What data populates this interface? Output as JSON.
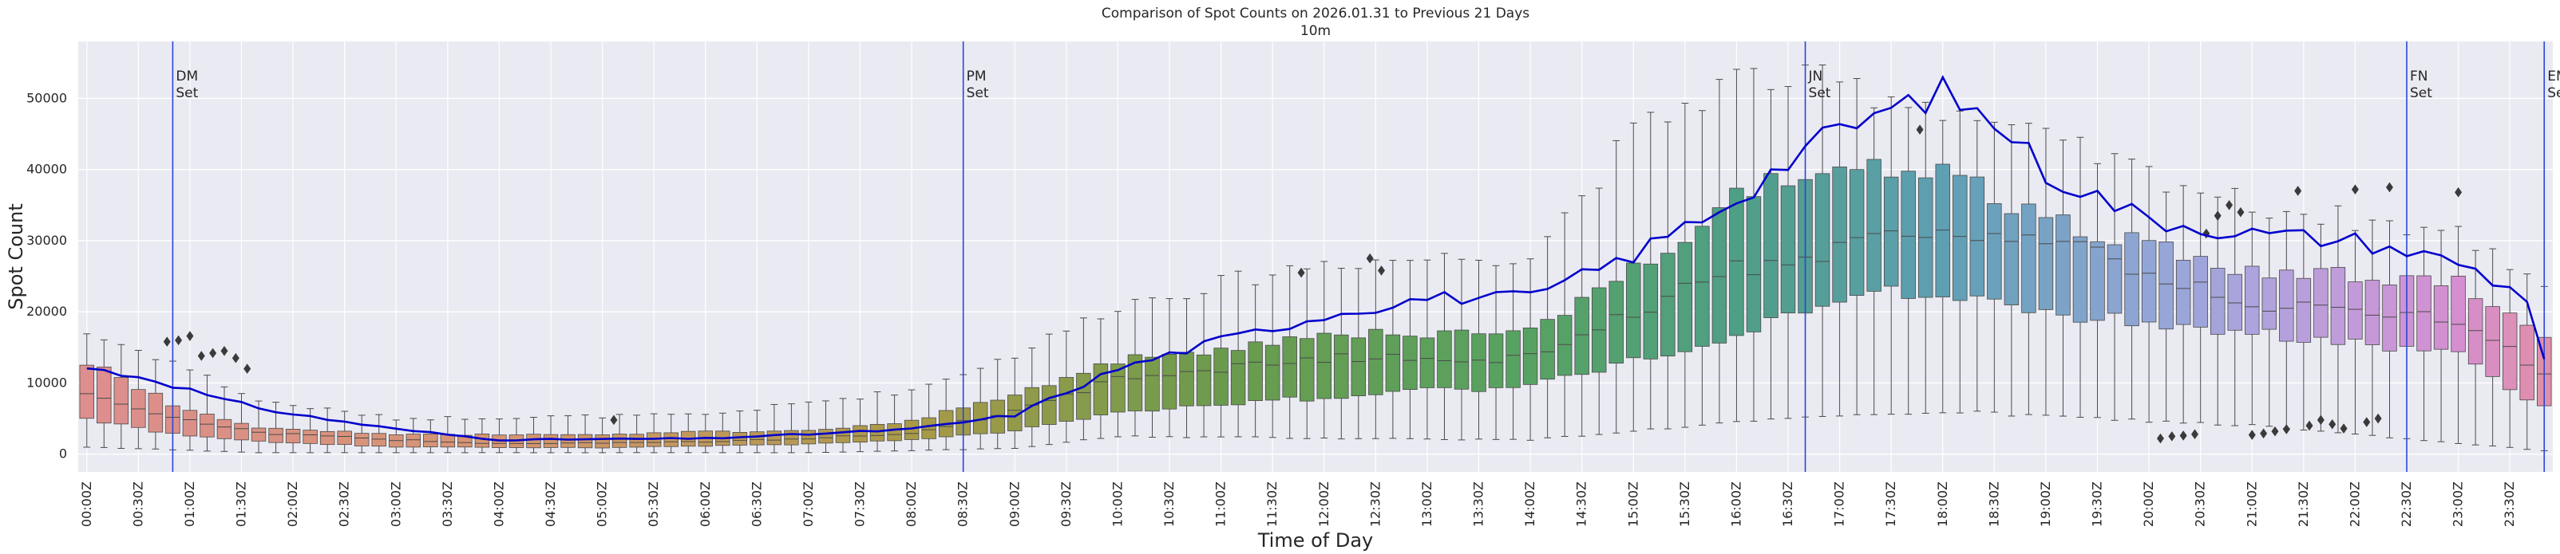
{
  "chart_data": {
    "type": "box",
    "title": "Comparison of Spot Counts on 2026.01.31 to Previous 21 Days",
    "subtitle": "10m",
    "xlabel": "Time of Day",
    "ylabel": "Spot Count",
    "ylim": [
      -2500,
      58000
    ],
    "yticks": [
      0,
      10000,
      20000,
      30000,
      40000,
      50000
    ],
    "grid": true,
    "bins": 144,
    "bin_minutes": 10,
    "xtick_labels": [
      "00:00Z",
      "00:30Z",
      "01:00Z",
      "01:30Z",
      "02:00Z",
      "02:30Z",
      "03:00Z",
      "03:30Z",
      "04:00Z",
      "04:30Z",
      "05:00Z",
      "05:30Z",
      "06:00Z",
      "06:30Z",
      "07:00Z",
      "07:30Z",
      "08:00Z",
      "08:30Z",
      "09:00Z",
      "09:30Z",
      "10:00Z",
      "10:30Z",
      "11:00Z",
      "11:30Z",
      "12:00Z",
      "12:30Z",
      "13:00Z",
      "13:30Z",
      "14:00Z",
      "14:30Z",
      "15:00Z",
      "15:30Z",
      "16:00Z",
      "16:30Z",
      "17:00Z",
      "17:30Z",
      "18:00Z",
      "18:30Z",
      "19:00Z",
      "19:30Z",
      "20:00Z",
      "20:30Z",
      "21:00Z",
      "21:30Z",
      "22:00Z",
      "22:30Z",
      "23:00Z",
      "23:30Z"
    ],
    "median_profile": [
      [
        0,
        8500
      ],
      [
        5,
        5200
      ],
      [
        10,
        3000
      ],
      [
        18,
        2000
      ],
      [
        24,
        1500
      ],
      [
        36,
        1700
      ],
      [
        42,
        2200
      ],
      [
        48,
        3000
      ],
      [
        54,
        6000
      ],
      [
        60,
        10500
      ],
      [
        72,
        13500
      ],
      [
        84,
        13500
      ],
      [
        96,
        26000
      ],
      [
        108,
        32000
      ],
      [
        114,
        30000
      ],
      [
        126,
        21000
      ],
      [
        138,
        19000
      ],
      [
        143,
        11500
      ]
    ],
    "q1_profile": [
      [
        0,
        5000
      ],
      [
        5,
        2800
      ],
      [
        10,
        1800
      ],
      [
        18,
        1000
      ],
      [
        30,
        900
      ],
      [
        42,
        1400
      ],
      [
        48,
        2000
      ],
      [
        54,
        3200
      ],
      [
        60,
        6000
      ],
      [
        72,
        8000
      ],
      [
        78,
        9000
      ],
      [
        84,
        9500
      ],
      [
        96,
        17000
      ],
      [
        102,
        22000
      ],
      [
        108,
        23000
      ],
      [
        114,
        20000
      ],
      [
        126,
        17000
      ],
      [
        138,
        14000
      ],
      [
        143,
        6500
      ]
    ],
    "q3_profile": [
      [
        0,
        13000
      ],
      [
        5,
        7000
      ],
      [
        10,
        3800
      ],
      [
        18,
        2700
      ],
      [
        30,
        2800
      ],
      [
        42,
        3400
      ],
      [
        48,
        4600
      ],
      [
        54,
        8500
      ],
      [
        60,
        13000
      ],
      [
        72,
        17000
      ],
      [
        84,
        17000
      ],
      [
        96,
        36000
      ],
      [
        102,
        41000
      ],
      [
        108,
        40000
      ],
      [
        114,
        33000
      ],
      [
        126,
        26000
      ],
      [
        138,
        24000
      ],
      [
        143,
        16000
      ]
    ],
    "whisker_low_profile": [
      [
        0,
        1000
      ],
      [
        10,
        200
      ],
      [
        42,
        200
      ],
      [
        54,
        800
      ],
      [
        60,
        2500
      ],
      [
        84,
        2000
      ],
      [
        96,
        4500
      ],
      [
        108,
        6000
      ],
      [
        126,
        4000
      ],
      [
        138,
        1500
      ],
      [
        143,
        500
      ]
    ],
    "whisker_high_profile": [
      [
        0,
        17000
      ],
      [
        5,
        13000
      ],
      [
        10,
        7500
      ],
      [
        18,
        5000
      ],
      [
        36,
        5500
      ],
      [
        48,
        9000
      ],
      [
        54,
        14000
      ],
      [
        60,
        21000
      ],
      [
        72,
        27000
      ],
      [
        84,
        28000
      ],
      [
        90,
        45000
      ],
      [
        96,
        53000
      ],
      [
        102,
        52000
      ],
      [
        108,
        49000
      ],
      [
        114,
        44000
      ],
      [
        126,
        35000
      ],
      [
        138,
        31000
      ],
      [
        143,
        24000
      ]
    ],
    "current_day_series": {
      "name": "2026.01.31",
      "color": "#0000cc",
      "points": [
        [
          0,
          12100
        ],
        [
          4,
          10500
        ],
        [
          8,
          7500
        ],
        [
          12,
          5600
        ],
        [
          18,
          3500
        ],
        [
          24,
          2000
        ],
        [
          36,
          2200
        ],
        [
          42,
          2800
        ],
        [
          48,
          3500
        ],
        [
          54,
          5500
        ],
        [
          60,
          12000
        ],
        [
          66,
          16000
        ],
        [
          72,
          19500
        ],
        [
          78,
          22000
        ],
        [
          84,
          22000
        ],
        [
          90,
          28000
        ],
        [
          96,
          36000
        ],
        [
          100,
          43000
        ],
        [
          104,
          47500
        ],
        [
          108,
          50900
        ],
        [
          112,
          45000
        ],
        [
          114,
          39500
        ],
        [
          120,
          33000
        ],
        [
          126,
          31000
        ],
        [
          132,
          30000
        ],
        [
          138,
          27000
        ],
        [
          142,
          22000
        ],
        [
          143,
          13500
        ]
      ]
    },
    "outliers": [
      [
        7,
        15800
      ],
      [
        8,
        16000
      ],
      [
        9,
        16600
      ],
      [
        10,
        13800
      ],
      [
        11,
        14200
      ],
      [
        12,
        14500
      ],
      [
        13,
        13500
      ],
      [
        14,
        12000
      ],
      [
        46,
        4800
      ],
      [
        106,
        25500
      ],
      [
        112,
        27500
      ],
      [
        113,
        25800
      ],
      [
        160,
        45600
      ],
      [
        181,
        2200
      ],
      [
        182,
        2500
      ],
      [
        183,
        2600
      ],
      [
        184,
        2800
      ],
      [
        185,
        31000
      ],
      [
        186,
        33500
      ],
      [
        187,
        35000
      ],
      [
        188,
        34000
      ],
      [
        189,
        2700
      ],
      [
        190,
        2900
      ],
      [
        191,
        3200
      ],
      [
        192,
        3500
      ],
      [
        193,
        37000
      ],
      [
        194,
        4000
      ],
      [
        195,
        4800
      ],
      [
        196,
        4200
      ],
      [
        197,
        3600
      ],
      [
        198,
        37200
      ],
      [
        199,
        4500
      ],
      [
        200,
        5000
      ],
      [
        201,
        37500
      ],
      [
        207,
        36800
      ]
    ],
    "box_color_stops": [
      [
        0,
        "#dd8e8e"
      ],
      [
        24,
        "#d59571"
      ],
      [
        48,
        "#a99a48"
      ],
      [
        66,
        "#6a9b4d"
      ],
      [
        84,
        "#57a262"
      ],
      [
        96,
        "#4f9e86"
      ],
      [
        108,
        "#5f9fb3"
      ],
      [
        120,
        "#91a6d6"
      ],
      [
        126,
        "#ada3dd"
      ],
      [
        132,
        "#c39ad9"
      ],
      [
        138,
        "#d58ecf"
      ],
      [
        143,
        "#e08fa9"
      ]
    ],
    "annotations": [
      {
        "bin": 5.5,
        "line1": "DM",
        "line2": "Set"
      },
      {
        "bin": 51.5,
        "line1": "PM",
        "line2": "Set"
      },
      {
        "bin": 100.5,
        "line1": "JN",
        "line2": "Set"
      },
      {
        "bin": 135.5,
        "line1": "FN",
        "line2": "Set"
      },
      {
        "bin": 143.5,
        "line1": "EM",
        "line2": "Set"
      }
    ]
  }
}
